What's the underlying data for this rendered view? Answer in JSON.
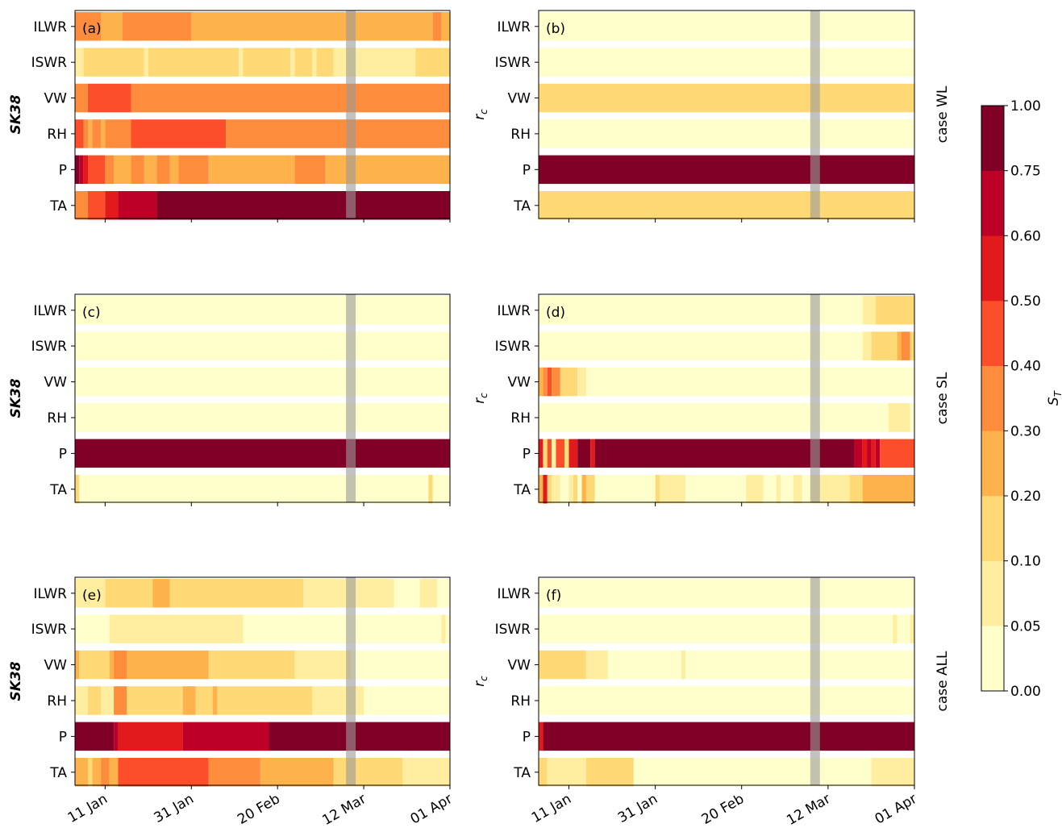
{
  "chart_data": {
    "type": "heatmap",
    "x_ticks": [
      "11 Jan",
      "31 Jan",
      "20 Feb",
      "12 Mar",
      "01 Apr"
    ],
    "x_range": [
      "2017-01-04",
      "2017-04-01"
    ],
    "highlight_date": "2017-03-09",
    "row_labels": [
      "ILWR",
      "ISWR",
      "VW",
      "RH",
      "P",
      "TA"
    ],
    "case_labels": [
      "case WL",
      "case SL",
      "case ALL"
    ],
    "y_labels": [
      "SK38",
      "r_c"
    ],
    "colorbar": {
      "label": "S_T",
      "boundaries": [
        0.0,
        0.05,
        0.1,
        0.2,
        0.3,
        0.4,
        0.5,
        0.6,
        0.75,
        1.0
      ],
      "tick_labels": [
        "0.00",
        "0.05",
        "0.10",
        "0.20",
        "0.30",
        "0.40",
        "0.50",
        "0.60",
        "0.75",
        "1.00"
      ],
      "colors": [
        "#ffffcc",
        "#ffeda0",
        "#fed976",
        "#feb24c",
        "#fd8d3c",
        "#fc4e2a",
        "#e31a1c",
        "#bd0026",
        "#800026"
      ]
    },
    "panels": [
      {
        "label": "(a)",
        "ylabel": "SK38",
        "case": "case WL",
        "rows": {
          "ILWR": [
            [
              "2017-01-04",
              0.35
            ],
            [
              "2017-01-10",
              0.25
            ],
            [
              "2017-01-15",
              0.35
            ],
            [
              "2017-01-31",
              0.25
            ],
            [
              "2017-03-28",
              0.35
            ],
            [
              "2017-03-30",
              0.25
            ]
          ],
          "ISWR": [
            [
              "2017-01-04",
              0.07
            ],
            [
              "2017-01-06",
              0.12
            ],
            [
              "2017-01-20",
              0.08
            ],
            [
              "2017-01-21",
              0.12
            ],
            [
              "2017-02-11",
              0.08
            ],
            [
              "2017-02-12",
              0.12
            ],
            [
              "2017-02-23",
              0.08
            ],
            [
              "2017-02-24",
              0.12
            ],
            [
              "2017-02-28",
              0.08
            ],
            [
              "2017-03-01",
              0.12
            ],
            [
              "2017-03-05",
              0.08
            ],
            [
              "2017-03-10",
              0.07
            ],
            [
              "2017-03-24",
              0.12
            ]
          ],
          "VW": [
            [
              "2017-01-04",
              0.35
            ],
            [
              "2017-01-07",
              0.45
            ],
            [
              "2017-01-17",
              0.35
            ]
          ],
          "RH": [
            [
              "2017-01-04",
              0.45
            ],
            [
              "2017-01-06",
              0.35
            ],
            [
              "2017-01-07",
              0.25
            ],
            [
              "2017-01-08",
              0.35
            ],
            [
              "2017-01-10",
              0.25
            ],
            [
              "2017-01-11",
              0.35
            ],
            [
              "2017-01-17",
              0.45
            ],
            [
              "2017-02-08",
              0.35
            ]
          ],
          "P": [
            [
              "2017-01-04",
              0.9
            ],
            [
              "2017-01-05",
              0.7
            ],
            [
              "2017-01-06",
              0.55
            ],
            [
              "2017-01-07",
              0.45
            ],
            [
              "2017-01-11",
              0.35
            ],
            [
              "2017-01-13",
              0.25
            ],
            [
              "2017-01-17",
              0.35
            ],
            [
              "2017-01-20",
              0.25
            ],
            [
              "2017-01-23",
              0.35
            ],
            [
              "2017-01-26",
              0.25
            ],
            [
              "2017-01-28",
              0.35
            ],
            [
              "2017-02-04",
              0.25
            ],
            [
              "2017-02-24",
              0.35
            ],
            [
              "2017-03-03",
              0.25
            ]
          ],
          "TA": [
            [
              "2017-01-04",
              0.35
            ],
            [
              "2017-01-07",
              0.45
            ],
            [
              "2017-01-11",
              0.55
            ],
            [
              "2017-01-14",
              0.7
            ],
            [
              "2017-01-23",
              0.9
            ]
          ]
        }
      },
      {
        "label": "(b)",
        "ylabel": "r_c",
        "case": "case WL",
        "rows": {
          "ILWR": [
            [
              "2017-01-04",
              0.02
            ]
          ],
          "ISWR": [
            [
              "2017-01-04",
              0.02
            ]
          ],
          "VW": [
            [
              "2017-01-04",
              0.15
            ]
          ],
          "RH": [
            [
              "2017-01-04",
              0.02
            ]
          ],
          "P": [
            [
              "2017-01-04",
              0.9
            ]
          ],
          "TA": [
            [
              "2017-01-04",
              0.15
            ]
          ]
        }
      },
      {
        "label": "(c)",
        "ylabel": "SK38",
        "case": "case SL",
        "rows": {
          "ILWR": [
            [
              "2017-01-04",
              0.02
            ]
          ],
          "ISWR": [
            [
              "2017-01-04",
              0.02
            ]
          ],
          "VW": [
            [
              "2017-01-04",
              0.02
            ]
          ],
          "RH": [
            [
              "2017-01-04",
              0.02
            ]
          ],
          "P": [
            [
              "2017-01-04",
              0.9
            ]
          ],
          "TA": [
            [
              "2017-01-04",
              0.15
            ],
            [
              "2017-01-05",
              0.02
            ],
            [
              "2017-03-27",
              0.12
            ],
            [
              "2017-03-28",
              0.02
            ]
          ]
        }
      },
      {
        "label": "(d)",
        "ylabel": "r_c",
        "case": "case SL",
        "rows": {
          "ILWR": [
            [
              "2017-01-04",
              0.02
            ],
            [
              "2017-03-20",
              0.08
            ],
            [
              "2017-03-23",
              0.15
            ]
          ],
          "ISWR": [
            [
              "2017-01-04",
              0.02
            ],
            [
              "2017-03-20",
              0.08
            ],
            [
              "2017-03-22",
              0.15
            ],
            [
              "2017-03-28",
              0.25
            ],
            [
              "2017-03-29",
              0.35
            ],
            [
              "2017-03-31",
              0.15
            ]
          ],
          "VW": [
            [
              "2017-01-04",
              0.25
            ],
            [
              "2017-01-05",
              0.35
            ],
            [
              "2017-01-06",
              0.45
            ],
            [
              "2017-01-07",
              0.35
            ],
            [
              "2017-01-09",
              0.15
            ],
            [
              "2017-01-13",
              0.08
            ],
            [
              "2017-01-15",
              0.02
            ]
          ],
          "RH": [
            [
              "2017-01-04",
              0.02
            ],
            [
              "2017-03-26",
              0.08
            ],
            [
              "2017-03-31",
              0.02
            ]
          ],
          "P": [
            [
              "2017-01-04",
              0.55
            ],
            [
              "2017-01-05",
              0.15
            ],
            [
              "2017-01-06",
              0.45
            ],
            [
              "2017-01-07",
              0.08
            ],
            [
              "2017-01-08",
              0.45
            ],
            [
              "2017-01-10",
              0.15
            ],
            [
              "2017-01-11",
              0.55
            ],
            [
              "2017-01-13",
              0.9
            ],
            [
              "2017-01-16",
              0.55
            ],
            [
              "2017-01-17",
              0.9
            ],
            [
              "2017-03-18",
              0.7
            ],
            [
              "2017-03-20",
              0.55
            ],
            [
              "2017-03-21",
              0.7
            ],
            [
              "2017-03-22",
              0.55
            ],
            [
              "2017-03-23",
              0.7
            ],
            [
              "2017-03-24",
              0.45
            ]
          ],
          "TA": [
            [
              "2017-01-04",
              0.25
            ],
            [
              "2017-01-05",
              0.55
            ],
            [
              "2017-01-06",
              0.15
            ],
            [
              "2017-01-07",
              0.08
            ],
            [
              "2017-01-09",
              0.02
            ],
            [
              "2017-01-11",
              0.08
            ],
            [
              "2017-01-12",
              0.15
            ],
            [
              "2017-01-13",
              0.02
            ],
            [
              "2017-01-14",
              0.25
            ],
            [
              "2017-01-15",
              0.12
            ],
            [
              "2017-01-17",
              0.02
            ],
            [
              "2017-01-31",
              0.15
            ],
            [
              "2017-02-01",
              0.08
            ],
            [
              "2017-02-07",
              0.02
            ],
            [
              "2017-02-21",
              0.08
            ],
            [
              "2017-02-25",
              0.02
            ],
            [
              "2017-02-28",
              0.08
            ],
            [
              "2017-03-01",
              0.02
            ],
            [
              "2017-03-04",
              0.08
            ],
            [
              "2017-03-06",
              0.02
            ],
            [
              "2017-03-08",
              0.08
            ],
            [
              "2017-03-17",
              0.15
            ],
            [
              "2017-03-20",
              0.25
            ]
          ]
        }
      },
      {
        "label": "(e)",
        "ylabel": "SK38",
        "case": "case ALL",
        "rows": {
          "ILWR": [
            [
              "2017-01-04",
              0.08
            ],
            [
              "2017-01-11",
              0.15
            ],
            [
              "2017-01-22",
              0.25
            ],
            [
              "2017-01-26",
              0.15
            ],
            [
              "2017-02-26",
              0.08
            ],
            [
              "2017-03-19",
              0.02
            ],
            [
              "2017-03-25",
              0.08
            ],
            [
              "2017-03-29",
              0.02
            ]
          ],
          "ISWR": [
            [
              "2017-01-04",
              0.02
            ],
            [
              "2017-01-12",
              0.08
            ],
            [
              "2017-02-12",
              0.02
            ],
            [
              "2017-03-30",
              0.08
            ],
            [
              "2017-03-31",
              0.02
            ]
          ],
          "VW": [
            [
              "2017-01-04",
              0.25
            ],
            [
              "2017-01-05",
              0.15
            ],
            [
              "2017-01-12",
              0.25
            ],
            [
              "2017-01-13",
              0.35
            ],
            [
              "2017-01-16",
              0.25
            ],
            [
              "2017-02-04",
              0.15
            ],
            [
              "2017-02-24",
              0.08
            ],
            [
              "2017-03-09",
              0.02
            ]
          ],
          "RH": [
            [
              "2017-01-04",
              0.08
            ],
            [
              "2017-01-07",
              0.15
            ],
            [
              "2017-01-10",
              0.08
            ],
            [
              "2017-01-13",
              0.35
            ],
            [
              "2017-01-16",
              0.15
            ],
            [
              "2017-01-29",
              0.25
            ],
            [
              "2017-02-01",
              0.15
            ],
            [
              "2017-02-05",
              0.25
            ],
            [
              "2017-02-06",
              0.15
            ],
            [
              "2017-02-28",
              0.08
            ],
            [
              "2017-03-12",
              0.02
            ]
          ],
          "P": [
            [
              "2017-01-04",
              0.9
            ],
            [
              "2017-01-13",
              0.7
            ],
            [
              "2017-01-14",
              0.55
            ],
            [
              "2017-01-29",
              0.7
            ],
            [
              "2017-02-18",
              0.9
            ]
          ],
          "TA": [
            [
              "2017-01-04",
              0.25
            ],
            [
              "2017-01-07",
              0.15
            ],
            [
              "2017-01-08",
              0.25
            ],
            [
              "2017-01-10",
              0.35
            ],
            [
              "2017-01-12",
              0.25
            ],
            [
              "2017-01-14",
              0.45
            ],
            [
              "2017-02-04",
              0.35
            ],
            [
              "2017-02-16",
              0.25
            ],
            [
              "2017-03-05",
              0.15
            ],
            [
              "2017-03-21",
              0.08
            ]
          ]
        }
      },
      {
        "label": "(f)",
        "ylabel": "r_c",
        "case": "case ALL",
        "rows": {
          "ILWR": [
            [
              "2017-01-04",
              0.02
            ]
          ],
          "ISWR": [
            [
              "2017-01-04",
              0.02
            ],
            [
              "2017-03-27",
              0.08
            ],
            [
              "2017-03-28",
              0.02
            ],
            [
              "2017-03-31",
              0.08
            ]
          ],
          "VW": [
            [
              "2017-01-04",
              0.15
            ],
            [
              "2017-01-15",
              0.08
            ],
            [
              "2017-01-20",
              0.02
            ],
            [
              "2017-02-06",
              0.08
            ],
            [
              "2017-02-07",
              0.02
            ]
          ],
          "RH": [
            [
              "2017-01-04",
              0.02
            ]
          ],
          "P": [
            [
              "2017-01-04",
              0.55
            ],
            [
              "2017-01-05",
              0.9
            ]
          ],
          "TA": [
            [
              "2017-01-04",
              0.15
            ],
            [
              "2017-01-06",
              0.08
            ],
            [
              "2017-01-15",
              0.15
            ],
            [
              "2017-01-26",
              0.02
            ],
            [
              "2017-03-22",
              0.08
            ]
          ]
        }
      }
    ]
  }
}
